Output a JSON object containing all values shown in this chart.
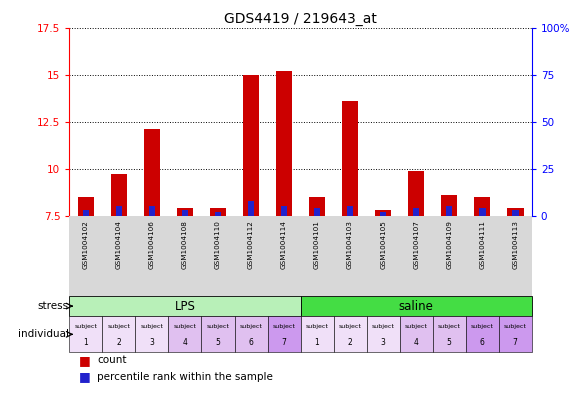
{
  "title": "GDS4419 / 219643_at",
  "samples": [
    "GSM1004102",
    "GSM1004104",
    "GSM1004106",
    "GSM1004108",
    "GSM1004110",
    "GSM1004112",
    "GSM1004114",
    "GSM1004101",
    "GSM1004103",
    "GSM1004105",
    "GSM1004107",
    "GSM1004109",
    "GSM1004111",
    "GSM1004113"
  ],
  "count_values": [
    8.5,
    9.7,
    12.1,
    7.9,
    7.9,
    15.0,
    15.2,
    8.5,
    13.6,
    7.8,
    9.9,
    8.6,
    8.5,
    7.9
  ],
  "percentile_values": [
    3,
    5,
    5,
    3,
    2,
    8,
    5,
    4,
    5,
    2,
    4,
    5,
    4,
    3
  ],
  "y_min": 7.5,
  "y_max": 17.5,
  "y_ticks_left": [
    7.5,
    10.0,
    12.5,
    15.0,
    17.5
  ],
  "y_ticks_right": [
    0,
    25,
    50,
    75,
    100
  ],
  "red_color": "#cc0000",
  "blue_color": "#2222cc",
  "lps_color": "#b8f0b8",
  "saline_color": "#44cc44",
  "stress_groups": [
    {
      "label": "LPS",
      "start": 0,
      "end": 7,
      "color": "#b8f0b8"
    },
    {
      "label": "saline",
      "start": 7,
      "end": 14,
      "color": "#44dd44"
    }
  ],
  "indiv_nums": [
    "1",
    "2",
    "3",
    "4",
    "5",
    "6",
    "7",
    "1",
    "2",
    "3",
    "4",
    "5",
    "6",
    "7"
  ],
  "indiv_colors": [
    "#f0e0f8",
    "#f0e0f8",
    "#f0e0f8",
    "#e0c0f0",
    "#e0c0f0",
    "#e0c0f0",
    "#cc99ee",
    "#f0e0f8",
    "#f0e0f8",
    "#f0e0f8",
    "#e0c0f0",
    "#e0c0f0",
    "#cc99ee",
    "#cc99ee"
  ],
  "bg_color": "#d8d8d8",
  "plot_bg": "#ffffff",
  "bar_width": 0.5,
  "blue_bar_width": 0.2
}
